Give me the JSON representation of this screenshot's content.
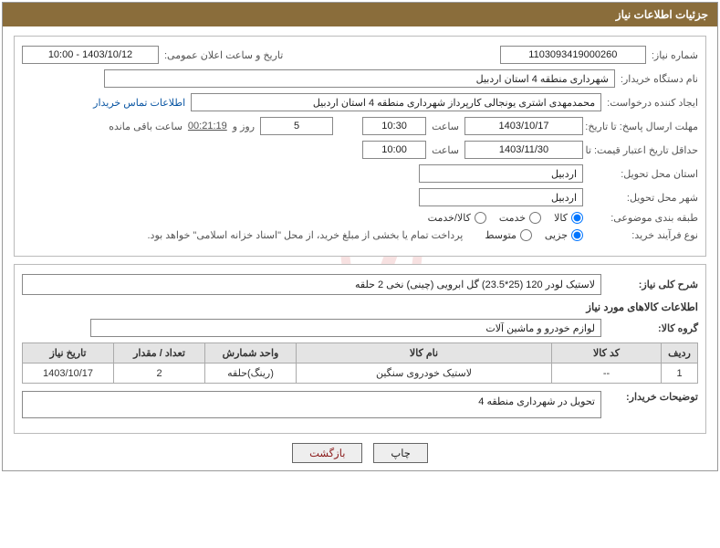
{
  "title": "جزئیات اطلاعات نیاز",
  "labels": {
    "need_no": "شماره نیاز:",
    "announce": "تاریخ و ساعت اعلان عمومی:",
    "buyer_org": "نام دستگاه خریدار:",
    "requester": "ایجاد کننده درخواست:",
    "contact_link": "اطلاعات تماس خریدار",
    "deadline": "مهلت ارسال پاسخ: تا تاریخ:",
    "hour": "ساعت",
    "days_and": "روز و",
    "remaining": "ساعت باقی مانده",
    "min_validity": "حداقل تاریخ اعتبار قیمت: تا تاریخ:",
    "deliver_province": "استان محل تحویل:",
    "deliver_city": "شهر محل تحویل:",
    "category": "طبقه بندی موضوعی:",
    "process": "نوع فرآیند خرید:",
    "payment_note": "پرداخت تمام یا بخشی از مبلغ خرید، از محل \"اسناد خزانه اسلامی\" خواهد بود.",
    "need_desc": "شرح کلی نیاز:",
    "items_heading": "اطلاعات کالاهای مورد نیاز",
    "group": "گروه کالا:",
    "buyer_notes": "توضیحات خریدار:"
  },
  "fields": {
    "need_no": "1103093419000260",
    "announce": "1403/10/12 - 10:00",
    "buyer_org": "شهرداری منطقه 4 استان اردبیل",
    "requester": "محمدمهدی اشتری یونجالی کارپرداز شهرداری منطقه 4 استان اردبیل",
    "deadline_date": "1403/10/17",
    "deadline_time": "10:30",
    "days_left": "5",
    "time_left": "00:21:19",
    "min_validity_date": "1403/11/30",
    "min_validity_time": "10:00",
    "province": "اردبیل",
    "city": "اردبیل",
    "need_desc": "لاستیک لودر 120 (25*23.5) گل ابرویی (چینی) نخی 2 حلقه",
    "group": "لوازم خودرو و ماشین آلات",
    "buyer_notes": "تحویل در شهرداری منطقه 4"
  },
  "radios": {
    "category": {
      "options": [
        "کالا",
        "خدمت",
        "کالا/خدمت"
      ],
      "selected": 0
    },
    "process": {
      "options": [
        "جزیی",
        "متوسط"
      ],
      "selected": 0
    }
  },
  "table": {
    "headers": [
      "ردیف",
      "کد کالا",
      "نام کالا",
      "واحد شمارش",
      "تعداد / مقدار",
      "تاریخ نیاز"
    ],
    "rows": [
      [
        "1",
        "--",
        "لاستیک خودروی سنگین",
        "(رینگ)حلقه",
        "2",
        "1403/10/17"
      ]
    ],
    "col_widths": [
      "40px",
      "120px",
      "auto",
      "100px",
      "100px",
      "100px"
    ]
  },
  "buttons": {
    "print": "چاپ",
    "back": "بازگشت"
  },
  "watermark": "AriaTender.net",
  "colors": {
    "titlebar_bg": "#8a6d3b",
    "titlebar_fg": "#ffffff",
    "border": "#999999",
    "th_bg": "#e4e4e4",
    "link": "#0a56a3"
  }
}
